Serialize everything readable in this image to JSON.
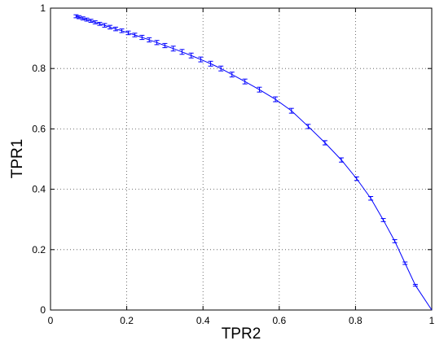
{
  "chart_data": {
    "type": "line",
    "title": "",
    "xlabel": "TPR2",
    "ylabel": "TPR1",
    "xlim": [
      0,
      1
    ],
    "ylim": [
      0,
      1
    ],
    "grid": true,
    "legend": "none",
    "line_color": "#0000ff",
    "x_ticks": [
      "0",
      "0.2",
      "0.4",
      "0.6",
      "0.8",
      "1"
    ],
    "y_ticks": [
      "0",
      "0.2",
      "0.4",
      "0.6",
      "0.8",
      "1"
    ],
    "series": [
      {
        "has_error_bars": true,
        "points": [
          {
            "x": 0.067,
            "y": 0.973,
            "err": 0.005
          },
          {
            "x": 0.075,
            "y": 0.97,
            "err": 0.005
          },
          {
            "x": 0.085,
            "y": 0.966,
            "err": 0.005
          },
          {
            "x": 0.095,
            "y": 0.962,
            "err": 0.005
          },
          {
            "x": 0.106,
            "y": 0.958,
            "err": 0.005
          },
          {
            "x": 0.117,
            "y": 0.953,
            "err": 0.005
          },
          {
            "x": 0.129,
            "y": 0.948,
            "err": 0.005
          },
          {
            "x": 0.142,
            "y": 0.943,
            "err": 0.006
          },
          {
            "x": 0.156,
            "y": 0.937,
            "err": 0.006
          },
          {
            "x": 0.171,
            "y": 0.931,
            "err": 0.006
          },
          {
            "x": 0.187,
            "y": 0.925,
            "err": 0.006
          },
          {
            "x": 0.204,
            "y": 0.918,
            "err": 0.006
          },
          {
            "x": 0.221,
            "y": 0.911,
            "err": 0.006
          },
          {
            "x": 0.24,
            "y": 0.903,
            "err": 0.007
          },
          {
            "x": 0.259,
            "y": 0.895,
            "err": 0.007
          },
          {
            "x": 0.279,
            "y": 0.886,
            "err": 0.007
          },
          {
            "x": 0.3,
            "y": 0.876,
            "err": 0.007
          },
          {
            "x": 0.322,
            "y": 0.866,
            "err": 0.008
          },
          {
            "x": 0.345,
            "y": 0.855,
            "err": 0.008
          },
          {
            "x": 0.369,
            "y": 0.843,
            "err": 0.008
          },
          {
            "x": 0.394,
            "y": 0.83,
            "err": 0.008
          },
          {
            "x": 0.42,
            "y": 0.816,
            "err": 0.008
          },
          {
            "x": 0.447,
            "y": 0.8,
            "err": 0.008
          },
          {
            "x": 0.476,
            "y": 0.78,
            "err": 0.008
          },
          {
            "x": 0.51,
            "y": 0.757,
            "err": 0.008
          },
          {
            "x": 0.548,
            "y": 0.73,
            "err": 0.008
          },
          {
            "x": 0.59,
            "y": 0.698,
            "err": 0.008
          },
          {
            "x": 0.632,
            "y": 0.66,
            "err": 0.008
          },
          {
            "x": 0.676,
            "y": 0.608,
            "err": 0.007
          },
          {
            "x": 0.72,
            "y": 0.554,
            "err": 0.007
          },
          {
            "x": 0.763,
            "y": 0.497,
            "err": 0.007
          },
          {
            "x": 0.803,
            "y": 0.435,
            "err": 0.006
          },
          {
            "x": 0.84,
            "y": 0.37,
            "err": 0.006
          },
          {
            "x": 0.873,
            "y": 0.298,
            "err": 0.005
          },
          {
            "x": 0.903,
            "y": 0.228,
            "err": 0.005
          },
          {
            "x": 0.93,
            "y": 0.155,
            "err": 0.004
          },
          {
            "x": 0.957,
            "y": 0.082,
            "err": 0.003
          },
          {
            "x": 1.0,
            "y": 0.0,
            "err": 0.0
          }
        ]
      }
    ]
  }
}
